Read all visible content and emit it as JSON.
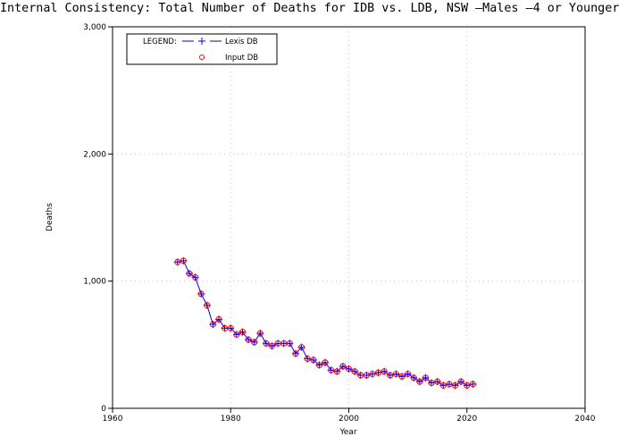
{
  "chart_data": {
    "type": "line",
    "title": "Internal Consistency: Total Number of Deaths for IDB vs. LDB, NSW —Males —4 or Younger",
    "xlabel": "Year",
    "ylabel": "Deaths",
    "xlim": [
      1960,
      2040
    ],
    "ylim": [
      0,
      3000
    ],
    "x_ticks": [
      "1960",
      "1980",
      "2000",
      "2020",
      "2040"
    ],
    "y_ticks": [
      "0",
      "1,000",
      "2,000",
      "3,000"
    ],
    "grid": "dotted",
    "legend": {
      "title": "LEGEND:",
      "position": "top-left"
    },
    "x": [
      1971,
      1972,
      1973,
      1974,
      1975,
      1976,
      1977,
      1978,
      1979,
      1980,
      1981,
      1982,
      1983,
      1984,
      1985,
      1986,
      1987,
      1988,
      1989,
      1990,
      1991,
      1992,
      1993,
      1994,
      1995,
      1996,
      1997,
      1998,
      1999,
      2000,
      2001,
      2002,
      2003,
      2004,
      2005,
      2006,
      2007,
      2008,
      2009,
      2010,
      2011,
      2012,
      2013,
      2014,
      2015,
      2016,
      2017,
      2018,
      2019,
      2020,
      2021
    ],
    "series": [
      {
        "name": "Lexis DB",
        "style": "line+plus",
        "color": "#0000ff",
        "values": [
          1150,
          1160,
          1060,
          1030,
          900,
          810,
          660,
          700,
          630,
          630,
          580,
          600,
          540,
          520,
          590,
          510,
          490,
          510,
          510,
          510,
          430,
          480,
          390,
          380,
          340,
          360,
          300,
          290,
          330,
          310,
          290,
          260,
          260,
          270,
          280,
          290,
          260,
          270,
          250,
          270,
          240,
          210,
          240,
          200,
          210,
          180,
          190,
          180,
          210,
          180,
          190
        ]
      },
      {
        "name": "Input DB",
        "style": "circle",
        "color": "#ff0000",
        "values": [
          1150,
          1160,
          1060,
          1030,
          900,
          810,
          660,
          700,
          630,
          630,
          580,
          600,
          540,
          520,
          590,
          510,
          490,
          510,
          510,
          510,
          430,
          480,
          390,
          380,
          340,
          360,
          300,
          290,
          330,
          310,
          290,
          260,
          260,
          270,
          280,
          290,
          260,
          270,
          250,
          270,
          240,
          210,
          240,
          200,
          210,
          180,
          190,
          180,
          210,
          180,
          190
        ]
      }
    ]
  }
}
